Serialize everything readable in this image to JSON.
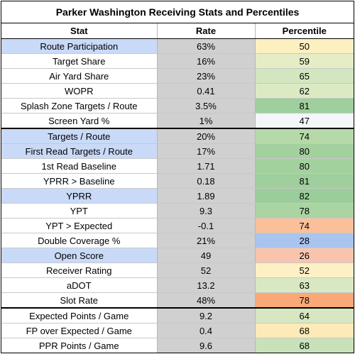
{
  "title": "Parker Washington Receiving Stats and Percentiles",
  "columns": [
    "Stat",
    "Rate",
    "Percentile"
  ],
  "rows": [
    {
      "stat": "Route Participation",
      "rate": "63%",
      "pct": "50",
      "hl": true,
      "color": "#fdf0c0",
      "sep": false
    },
    {
      "stat": "Target Share",
      "rate": "16%",
      "pct": "59",
      "hl": false,
      "color": "#e4edc6",
      "sep": false
    },
    {
      "stat": "Air Yard Share",
      "rate": "23%",
      "pct": "65",
      "hl": false,
      "color": "#d3e6c0",
      "sep": false
    },
    {
      "stat": "WOPR",
      "rate": "0.41",
      "pct": "62",
      "hl": false,
      "color": "#dceac4",
      "sep": false
    },
    {
      "stat": "Splash Zone Targets / Route",
      "rate": "3.5%",
      "pct": "81",
      "hl": false,
      "color": "#9fcf9c",
      "sep": false
    },
    {
      "stat": "Screen Yard %",
      "rate": "1%",
      "pct": "47",
      "hl": false,
      "color": "#f4f6fb",
      "sep": true
    },
    {
      "stat": "Targets / Route",
      "rate": "20%",
      "pct": "74",
      "hl": true,
      "color": "#b6d9a9",
      "sep": false
    },
    {
      "stat": "First Read Targets / Route",
      "rate": "17%",
      "pct": "80",
      "hl": true,
      "color": "#a3d19e",
      "sep": false
    },
    {
      "stat": "1st Read Baseline",
      "rate": "1.71",
      "pct": "80",
      "hl": false,
      "color": "#a3d19e",
      "sep": false
    },
    {
      "stat": "YPRR > Baseline",
      "rate": "0.18",
      "pct": "81",
      "hl": false,
      "color": "#9fcf9c",
      "sep": false
    },
    {
      "stat": "YPRR",
      "rate": "1.89",
      "pct": "82",
      "hl": true,
      "color": "#9bcd9a",
      "sep": false
    },
    {
      "stat": "YPT",
      "rate": "9.3",
      "pct": "78",
      "hl": false,
      "color": "#aad4a2",
      "sep": false
    },
    {
      "stat": "YPT > Expected",
      "rate": "-0.1",
      "pct": "74",
      "hl": false,
      "color": "#fbc09a",
      "sep": false
    },
    {
      "stat": "Double Coverage %",
      "rate": "21%",
      "pct": "28",
      "hl": false,
      "color": "#a9c4ef",
      "sep": false
    },
    {
      "stat": "Open Score",
      "rate": "49",
      "pct": "26",
      "hl": true,
      "color": "#f8c4ae",
      "sep": false
    },
    {
      "stat": "Receiver Rating",
      "rate": "52",
      "pct": "52",
      "hl": false,
      "color": "#fcf0c4",
      "sep": false
    },
    {
      "stat": "aDOT",
      "rate": "13.2",
      "pct": "63",
      "hl": false,
      "color": "#d8e8c2",
      "sep": false
    },
    {
      "stat": "Slot Rate",
      "rate": "48%",
      "pct": "78",
      "hl": false,
      "color": "#f9a977",
      "sep": true
    },
    {
      "stat": "Expected Points / Game",
      "rate": "9.2",
      "pct": "64",
      "hl": false,
      "color": "#d6e7c1",
      "sep": false
    },
    {
      "stat": "FP over Expected / Game",
      "rate": "0.4",
      "pct": "68",
      "hl": false,
      "color": "#fdeab8",
      "sep": false
    },
    {
      "stat": "PPR Points / Game",
      "rate": "9.6",
      "pct": "68",
      "hl": false,
      "color": "#c9e1b8",
      "sep": false
    }
  ]
}
